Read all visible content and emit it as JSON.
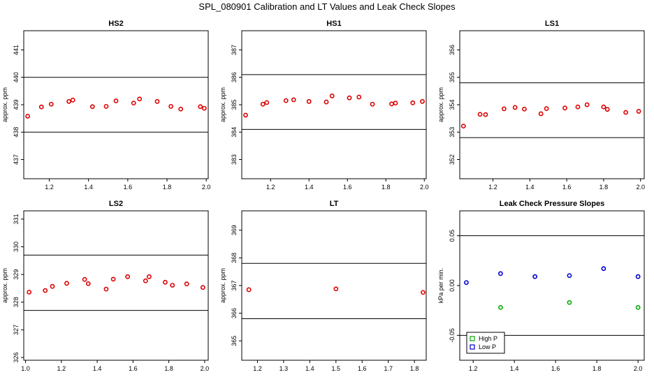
{
  "figure": {
    "title": "SPL_080901  Calibration and LT Values and Leak Check Slopes"
  },
  "colors": {
    "red": "#dd0000",
    "green": "#00aa00",
    "blue": "#0000cc",
    "axis": "#000000"
  },
  "chart_data": [
    {
      "id": "hs2",
      "type": "scatter",
      "title": "HS2",
      "ylabel": "approx. ppm",
      "xlim": [
        1.07,
        2.01
      ],
      "ylim": [
        436.3,
        441.7
      ],
      "xticks": [
        1.2,
        1.4,
        1.6,
        1.8,
        2.0
      ],
      "xtick_labels": [
        "1.2",
        "1.4",
        "1.6",
        "1.8",
        "2.0"
      ],
      "yticks": [
        437,
        438,
        439,
        440,
        441
      ],
      "ytick_labels": [
        "437",
        "438",
        "439",
        "440",
        "441"
      ],
      "hlines": [
        438,
        440
      ],
      "series": [
        {
          "color": "red",
          "marker": "circle",
          "x": [
            1.09,
            1.16,
            1.21,
            1.3,
            1.32,
            1.42,
            1.49,
            1.54,
            1.63,
            1.66,
            1.75,
            1.82,
            1.87,
            1.97,
            1.99
          ],
          "y": [
            438.58,
            438.92,
            439.02,
            439.12,
            439.17,
            438.93,
            438.94,
            439.14,
            439.06,
            439.21,
            439.12,
            438.94,
            438.84,
            438.93,
            438.87
          ]
        }
      ]
    },
    {
      "id": "hs1",
      "type": "scatter",
      "title": "HS1",
      "ylabel": "approx. ppm",
      "xlim": [
        1.05,
        2.01
      ],
      "ylim": [
        382.3,
        387.7
      ],
      "xticks": [
        1.2,
        1.4,
        1.6,
        1.8,
        2.0
      ],
      "xtick_labels": [
        "1.2",
        "1.4",
        "1.6",
        "1.8",
        "2.0"
      ],
      "yticks": [
        383,
        384,
        385,
        386,
        387
      ],
      "ytick_labels": [
        "383",
        "384",
        "385",
        "386",
        "387"
      ],
      "hlines": [
        384.1,
        386.1
      ],
      "series": [
        {
          "color": "red",
          "marker": "circle",
          "x": [
            1.07,
            1.16,
            1.18,
            1.28,
            1.32,
            1.4,
            1.49,
            1.52,
            1.61,
            1.66,
            1.73,
            1.83,
            1.85,
            1.94,
            1.99
          ],
          "y": [
            384.62,
            385.02,
            385.08,
            385.15,
            385.18,
            385.12,
            385.1,
            385.32,
            385.25,
            385.28,
            385.02,
            385.03,
            385.06,
            385.07,
            385.12
          ]
        }
      ]
    },
    {
      "id": "ls1",
      "type": "scatter",
      "title": "LS1",
      "ylabel": "approx. ppm",
      "xlim": [
        1.02,
        2.02
      ],
      "ylim": [
        351.3,
        356.7
      ],
      "xticks": [
        1.2,
        1.4,
        1.6,
        1.8,
        2.0
      ],
      "xtick_labels": [
        "1.2",
        "1.4",
        "1.6",
        "1.8",
        "2.0"
      ],
      "yticks": [
        352,
        353,
        354,
        355,
        356
      ],
      "ytick_labels": [
        "352",
        "353",
        "354",
        "355",
        "356"
      ],
      "hlines": [
        352.8,
        354.8
      ],
      "series": [
        {
          "color": "red",
          "marker": "circle",
          "x": [
            1.04,
            1.13,
            1.16,
            1.26,
            1.32,
            1.37,
            1.46,
            1.49,
            1.59,
            1.66,
            1.71,
            1.8,
            1.82,
            1.92,
            1.99
          ],
          "y": [
            353.22,
            353.65,
            353.64,
            353.85,
            353.9,
            353.84,
            353.67,
            353.86,
            353.88,
            353.92,
            354.0,
            353.92,
            353.83,
            353.72,
            353.76
          ]
        }
      ]
    },
    {
      "id": "ls2",
      "type": "scatter",
      "title": "LS2",
      "ylabel": "approx. ppm",
      "xlim": [
        0.99,
        2.02
      ],
      "ylim": [
        325.9,
        331.3
      ],
      "xticks": [
        1.0,
        1.2,
        1.4,
        1.6,
        1.8,
        2.0
      ],
      "xtick_labels": [
        "1.0",
        "1.2",
        "1.4",
        "1.6",
        "1.8",
        "2.0"
      ],
      "yticks": [
        326,
        327,
        328,
        329,
        330,
        331
      ],
      "ytick_labels": [
        "326",
        "327",
        "328",
        "329",
        "330",
        "331"
      ],
      "hlines": [
        327.7,
        329.7
      ],
      "series": [
        {
          "color": "red",
          "marker": "circle",
          "x": [
            1.02,
            1.11,
            1.15,
            1.23,
            1.33,
            1.35,
            1.45,
            1.49,
            1.57,
            1.67,
            1.69,
            1.78,
            1.82,
            1.9,
            1.99
          ],
          "y": [
            328.36,
            328.42,
            328.57,
            328.68,
            328.82,
            328.67,
            328.47,
            328.83,
            328.92,
            328.77,
            328.92,
            328.72,
            328.61,
            328.66,
            328.53
          ]
        }
      ]
    },
    {
      "id": "lt",
      "type": "scatter",
      "title": "LT",
      "ylabel": "approx. ppm",
      "xlim": [
        1.14,
        1.845
      ],
      "ylim": [
        364.3,
        369.7
      ],
      "xticks": [
        1.2,
        1.3,
        1.4,
        1.5,
        1.6,
        1.7,
        1.8
      ],
      "xtick_labels": [
        "1.2",
        "1.3",
        "1.4",
        "1.5",
        "1.6",
        "1.7",
        "1.8"
      ],
      "yticks": [
        365,
        366,
        367,
        368,
        369
      ],
      "ytick_labels": [
        "365",
        "366",
        "367",
        "368",
        "369"
      ],
      "hlines": [
        365.8,
        367.8
      ],
      "series": [
        {
          "color": "red",
          "marker": "circle",
          "x": [
            1.167,
            1.5,
            1.833
          ],
          "y": [
            366.85,
            366.88,
            366.75
          ]
        }
      ]
    },
    {
      "id": "leak",
      "type": "scatter",
      "title": "Leak Check Pressure Slopes",
      "ylabel": "kPa per min.",
      "xlim": [
        1.135,
        2.03
      ],
      "ylim": [
        -0.075,
        0.075
      ],
      "xticks": [
        1.2,
        1.4,
        1.6,
        1.8,
        2.0
      ],
      "xtick_labels": [
        "1.2",
        "1.4",
        "1.6",
        "1.8",
        "2.0"
      ],
      "yticks": [
        -0.05,
        0.0,
        0.05
      ],
      "ytick_labels": [
        "-0.05",
        "0.00",
        "0.05"
      ],
      "hlines": [
        -0.05,
        0.05
      ],
      "legend": {
        "position": "bottom-left",
        "items": [
          {
            "label": "High P",
            "color": "green",
            "marker": "square"
          },
          {
            "label": "Low P",
            "color": "blue",
            "marker": "square"
          }
        ]
      },
      "series": [
        {
          "name": "High P",
          "color": "green",
          "marker": "circle",
          "x": [
            1.333,
            1.667,
            2.0
          ],
          "y": [
            -0.022,
            -0.017,
            -0.022
          ]
        },
        {
          "name": "Low P",
          "color": "blue",
          "marker": "circle",
          "x": [
            1.167,
            1.333,
            1.5,
            1.667,
            1.833,
            2.0
          ],
          "y": [
            0.003,
            0.012,
            0.009,
            0.01,
            0.017,
            0.009
          ]
        }
      ]
    }
  ]
}
